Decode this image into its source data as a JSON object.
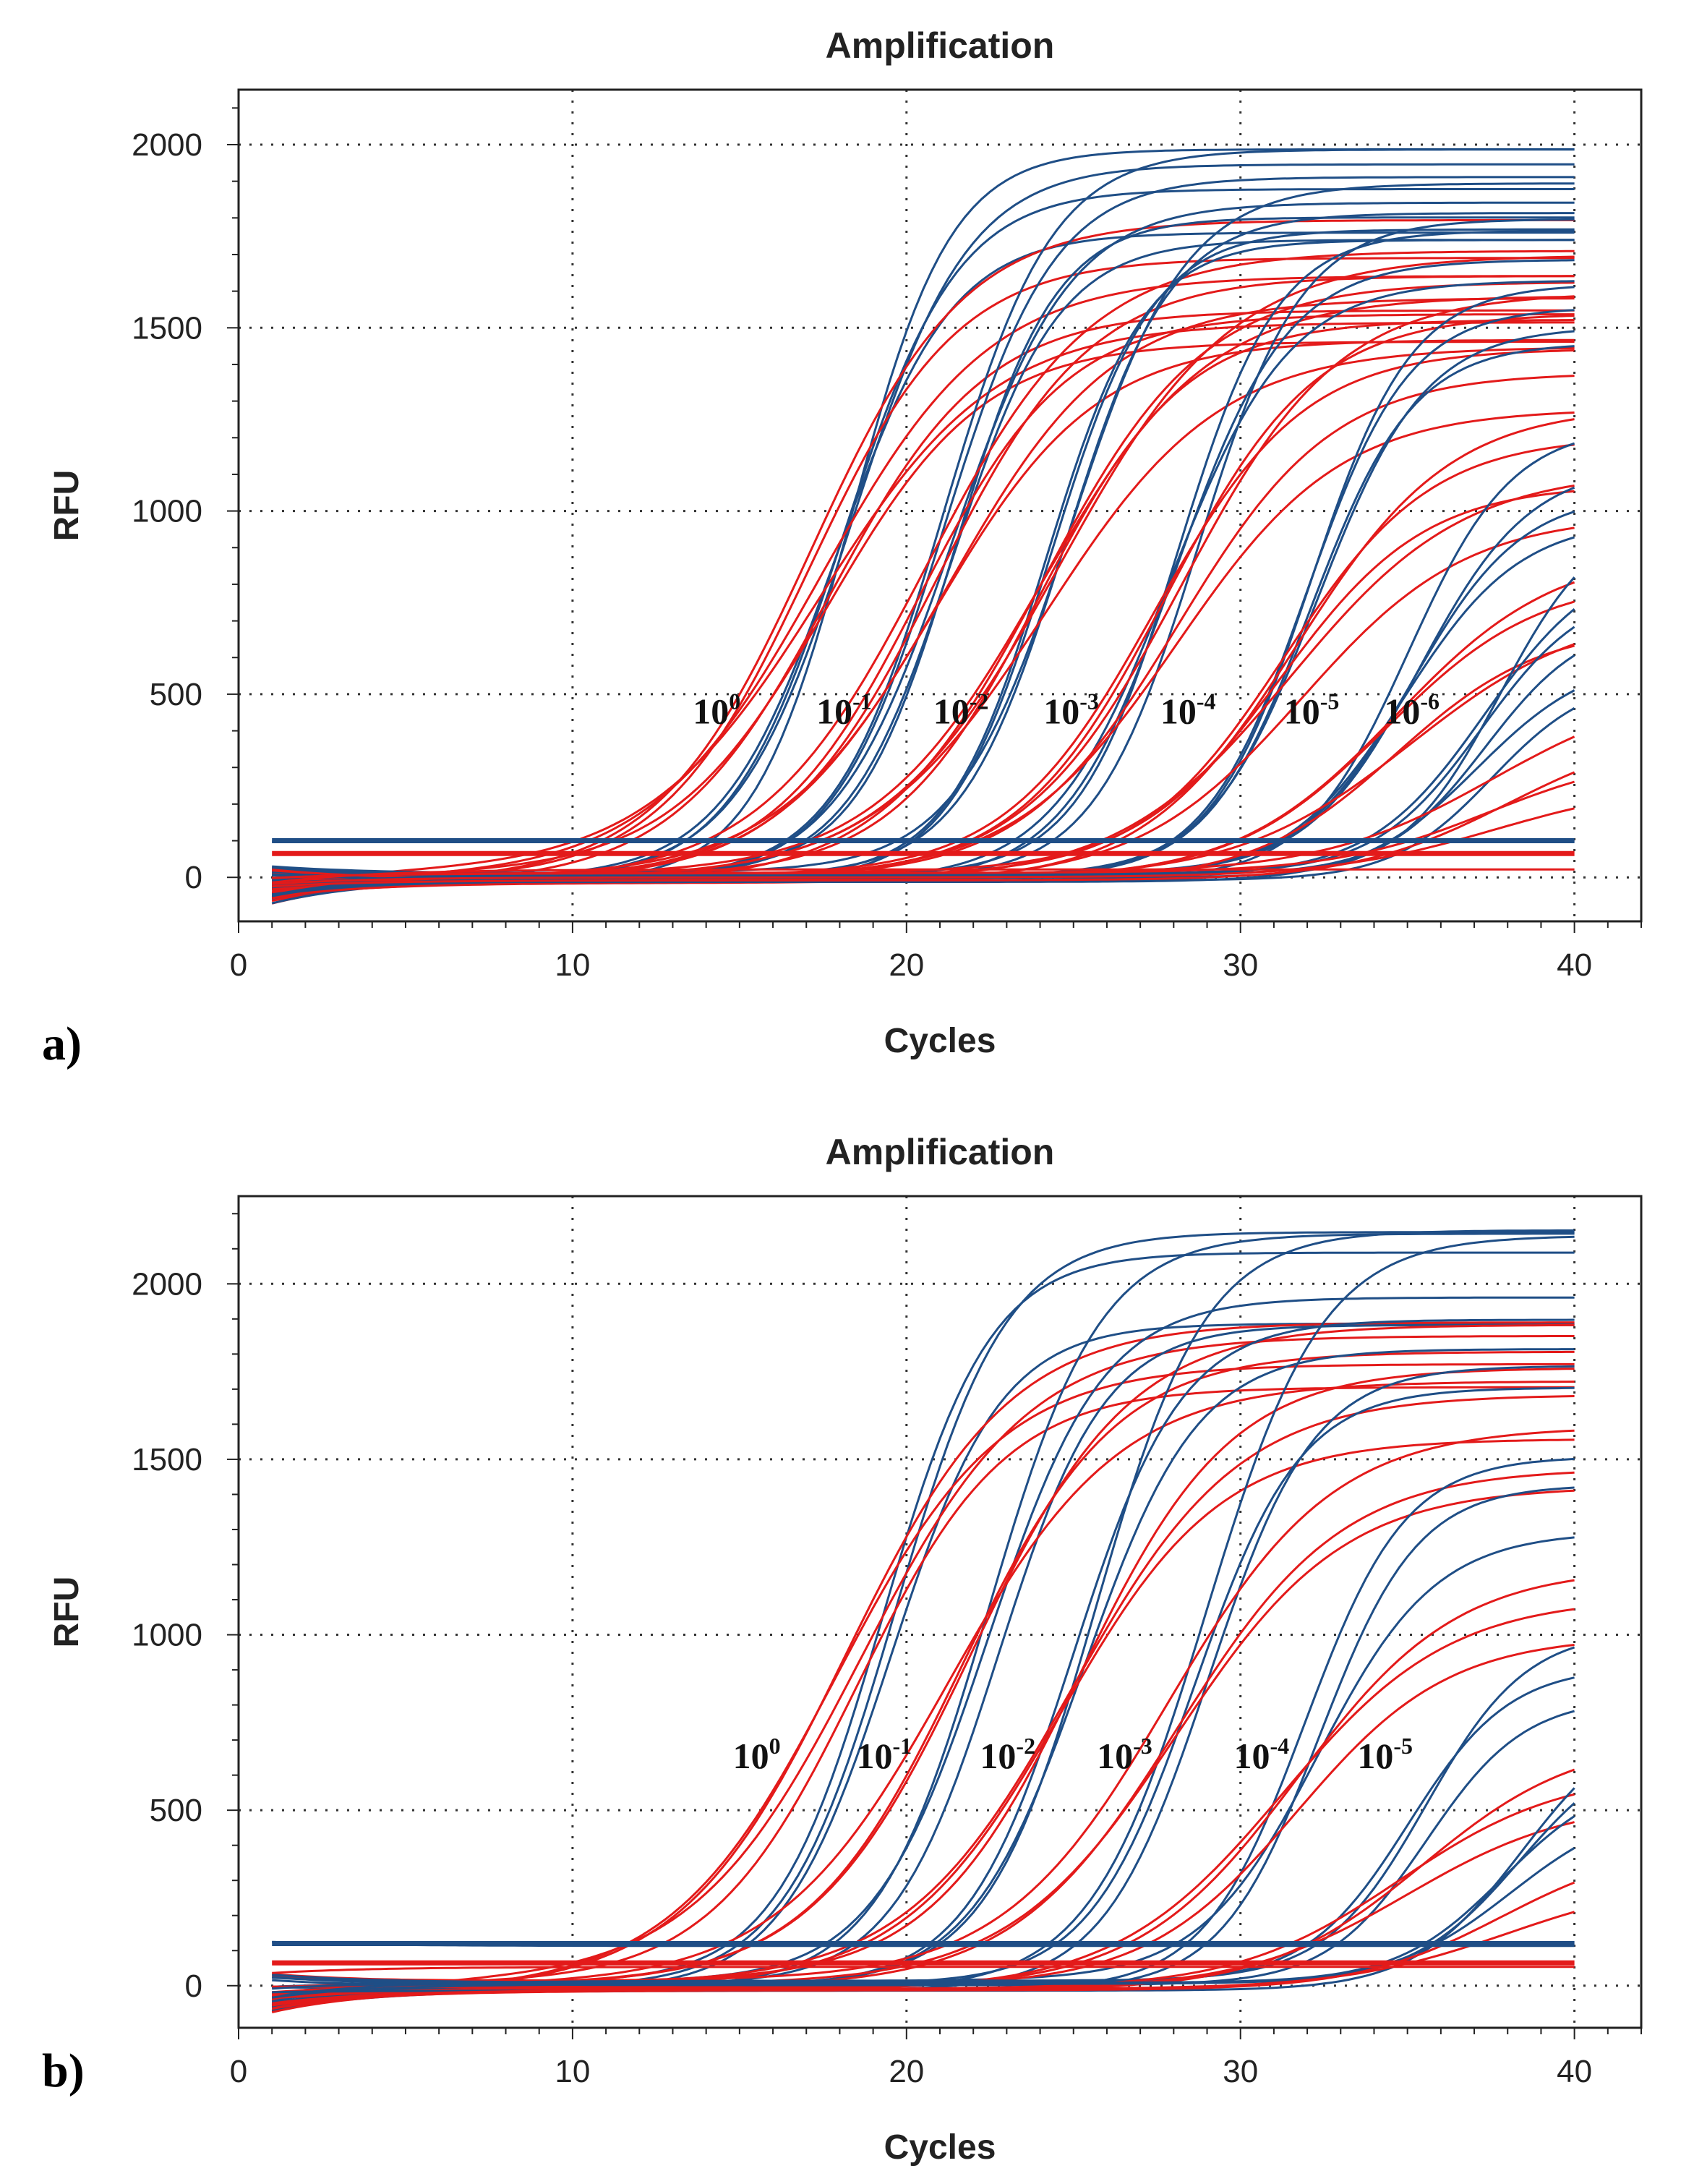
{
  "chart_data": [
    {
      "panel": "a)",
      "type": "line",
      "title": "Amplification",
      "xlabel": "Cycles",
      "ylabel": "RFU",
      "xlim": [
        0,
        42
      ],
      "ylim": [
        -120,
        2150
      ],
      "xticks": [
        0,
        10,
        20,
        30,
        40
      ],
      "yticks": [
        0,
        500,
        1000,
        1500,
        2000
      ],
      "grid": true,
      "thresholds": [
        {
          "color": "#1f4e86",
          "value": 100
        },
        {
          "color": "#e31a1a",
          "value": 65
        }
      ],
      "dilution_labels": [
        {
          "base": "10",
          "exp": "0",
          "cycle": 13.6,
          "rfu": 420
        },
        {
          "base": "10",
          "exp": "-1",
          "cycle": 17.3,
          "rfu": 420
        },
        {
          "base": "10",
          "exp": "-2",
          "cycle": 20.8,
          "rfu": 420
        },
        {
          "base": "10",
          "exp": "-3",
          "cycle": 24.1,
          "rfu": 420
        },
        {
          "base": "10",
          "exp": "-4",
          "cycle": 27.6,
          "rfu": 420
        },
        {
          "base": "10",
          "exp": "-5",
          "cycle": 31.3,
          "rfu": 420
        },
        {
          "base": "10",
          "exp": "-6",
          "cycle": 34.3,
          "rfu": 420
        }
      ],
      "series": [
        {
          "name": "blue 10^0",
          "color": "#1f4e86",
          "baseline": 0,
          "Cq": 18.0,
          "k": 0.62,
          "plateaus": [
            2000,
            1950,
            1890,
            1760
          ]
        },
        {
          "name": "red 10^0",
          "color": "#e31a1a",
          "baseline": 0,
          "Cq": 17.5,
          "k": 0.42,
          "plateaus": [
            1800,
            1700,
            1640,
            1560,
            1500,
            1450
          ]
        },
        {
          "name": "blue 10^-1",
          "color": "#1f4e86",
          "baseline": 0,
          "Cq": 21.2,
          "k": 0.62,
          "plateaus": [
            1990,
            1920,
            1850,
            1790,
            1740
          ]
        },
        {
          "name": "red 10^-1",
          "color": "#e31a1a",
          "baseline": 0,
          "Cq": 20.8,
          "k": 0.42,
          "plateaus": [
            1720,
            1650,
            1580,
            1540,
            1480
          ]
        },
        {
          "name": "blue 10^-2",
          "color": "#1f4e86",
          "baseline": 0,
          "Cq": 24.6,
          "k": 0.62,
          "plateaus": [
            1880,
            1810,
            1780,
            1740
          ]
        },
        {
          "name": "red 10^-2",
          "color": "#e31a1a",
          "baseline": 0,
          "Cq": 24.3,
          "k": 0.42,
          "plateaus": [
            1700,
            1640,
            1580,
            1520,
            1450
          ]
        },
        {
          "name": "blue 10^-3",
          "color": "#1f4e86",
          "baseline": 0,
          "Cq": 28.3,
          "k": 0.62,
          "plateaus": [
            1800,
            1760,
            1700,
            1640
          ]
        },
        {
          "name": "red 10^-3",
          "color": "#e31a1a",
          "baseline": 0,
          "Cq": 27.8,
          "k": 0.42,
          "plateaus": [
            1600,
            1540,
            1440,
            1380,
            1280
          ]
        },
        {
          "name": "blue 10^-4",
          "color": "#1f4e86",
          "baseline": 0,
          "Cq": 31.9,
          "k": 0.62,
          "plateaus": [
            1620,
            1560,
            1500,
            1460
          ]
        },
        {
          "name": "red 10^-4",
          "color": "#e31a1a",
          "baseline": 0,
          "Cq": 31.4,
          "k": 0.42,
          "plateaus": [
            1300,
            1200,
            1120,
            1060,
            1000
          ]
        },
        {
          "name": "blue 10^-5",
          "color": "#1f4e86",
          "baseline": 0,
          "Cq": 35.3,
          "k": 0.62,
          "plateaus": [
            1240,
            1120,
            1040,
            980
          ]
        },
        {
          "name": "red 10^-5",
          "color": "#e31a1a",
          "baseline": 0,
          "Cq": 34.8,
          "k": 0.42,
          "plateaus": [
            900,
            820,
            740,
            700
          ]
        },
        {
          "name": "blue 10^-6",
          "color": "#1f4e86",
          "baseline": 0,
          "Cq": 37.5,
          "k": 0.62,
          "plateaus": [
            1000,
            880,
            790,
            700,
            620,
            560
          ]
        },
        {
          "name": "red 10^-6",
          "color": "#e31a1a",
          "baseline": 0,
          "Cq": 37.8,
          "k": 0.42,
          "plateaus": [
            520,
            420,
            330,
            260
          ]
        },
        {
          "name": "blue baseline",
          "color": "#1f4e86",
          "baseline": 90,
          "Cq": 55,
          "k": 0.3,
          "plateaus": [
            0
          ]
        },
        {
          "name": "red baseline",
          "color": "#e31a1a",
          "baseline": 20,
          "Cq": 55,
          "k": 0.3,
          "plateaus": [
            0
          ]
        }
      ]
    },
    {
      "panel": "b)",
      "type": "line",
      "title": "Amplification",
      "xlabel": "Cycles",
      "ylabel": "RFU",
      "xlim": [
        0,
        42
      ],
      "ylim": [
        -120,
        2250
      ],
      "xticks": [
        0,
        10,
        20,
        30,
        40
      ],
      "yticks": [
        0,
        500,
        1000,
        1500,
        2000
      ],
      "grid": true,
      "thresholds": [
        {
          "color": "#1f4e86",
          "value": 120
        },
        {
          "color": "#e31a1a",
          "value": 65
        }
      ],
      "dilution_labels": [
        {
          "base": "10",
          "exp": "0",
          "cycle": 14.8,
          "rfu": 620
        },
        {
          "base": "10",
          "exp": "-1",
          "cycle": 18.5,
          "rfu": 620
        },
        {
          "base": "10",
          "exp": "-2",
          "cycle": 22.2,
          "rfu": 620
        },
        {
          "base": "10",
          "exp": "-3",
          "cycle": 25.7,
          "rfu": 620
        },
        {
          "base": "10",
          "exp": "-4",
          "cycle": 29.8,
          "rfu": 620
        },
        {
          "base": "10",
          "exp": "-5",
          "cycle": 33.5,
          "rfu": 620
        }
      ],
      "series": [
        {
          "name": "blue 10^0",
          "color": "#1f4e86",
          "baseline": 0,
          "Cq": 19.3,
          "k": 0.62,
          "plateaus": [
            2150,
            2080,
            1900
          ]
        },
        {
          "name": "red 10^0",
          "color": "#e31a1a",
          "baseline": 0,
          "Cq": 18.3,
          "k": 0.42,
          "plateaus": [
            1900,
            1840,
            1780,
            1700
          ]
        },
        {
          "name": "blue 10^-1",
          "color": "#1f4e86",
          "baseline": 0,
          "Cq": 22.5,
          "k": 0.62,
          "plateaus": [
            2150,
            1950,
            1880
          ]
        },
        {
          "name": "red 10^-1",
          "color": "#e31a1a",
          "baseline": 0,
          "Cq": 21.6,
          "k": 0.42,
          "plateaus": [
            1880,
            1800,
            1720
          ]
        },
        {
          "name": "blue 10^-2",
          "color": "#1f4e86",
          "baseline": 0,
          "Cq": 25.4,
          "k": 0.62,
          "plateaus": [
            2150,
            1900,
            1820
          ]
        },
        {
          "name": "red 10^-2",
          "color": "#e31a1a",
          "baseline": 0,
          "Cq": 24.8,
          "k": 0.42,
          "plateaus": [
            1750,
            1680,
            1560
          ]
        },
        {
          "name": "blue 10^-3",
          "color": "#1f4e86",
          "baseline": 0,
          "Cq": 28.6,
          "k": 0.62,
          "plateaus": [
            2150,
            1780,
            1700
          ]
        },
        {
          "name": "red 10^-3",
          "color": "#e31a1a",
          "baseline": 0,
          "Cq": 27.9,
          "k": 0.42,
          "plateaus": [
            1580,
            1480,
            1420
          ]
        },
        {
          "name": "blue 10^-4",
          "color": "#1f4e86",
          "baseline": 0,
          "Cq": 32.3,
          "k": 0.62,
          "plateaus": [
            1520,
            1440,
            1280
          ]
        },
        {
          "name": "red 10^-4",
          "color": "#e31a1a",
          "baseline": 0,
          "Cq": 31.6,
          "k": 0.42,
          "plateaus": [
            1200,
            1120,
            1000
          ]
        },
        {
          "name": "blue 10^-5",
          "color": "#1f4e86",
          "baseline": 0,
          "Cq": 35.4,
          "k": 0.62,
          "plateaus": [
            1000,
            900,
            820
          ]
        },
        {
          "name": "red 10^-5",
          "color": "#e31a1a",
          "baseline": 0,
          "Cq": 35.1,
          "k": 0.42,
          "plateaus": [
            720,
            620,
            540
          ]
        },
        {
          "name": "blue late",
          "color": "#1f4e86",
          "baseline": 0,
          "Cq": 38.0,
          "k": 0.62,
          "plateaus": [
            800,
            700,
            600,
            520
          ]
        },
        {
          "name": "red late",
          "color": "#e31a1a",
          "baseline": 0,
          "Cq": 38.2,
          "k": 0.42,
          "plateaus": [
            420,
            320
          ]
        },
        {
          "name": "blue baseline",
          "color": "#1f4e86",
          "baseline": 110,
          "Cq": 55,
          "k": 0.3,
          "plateaus": [
            0
          ]
        },
        {
          "name": "red baseline",
          "color": "#e31a1a",
          "baseline": 40,
          "Cq": 55,
          "k": 0.3,
          "plateaus": [
            0
          ]
        }
      ]
    }
  ]
}
